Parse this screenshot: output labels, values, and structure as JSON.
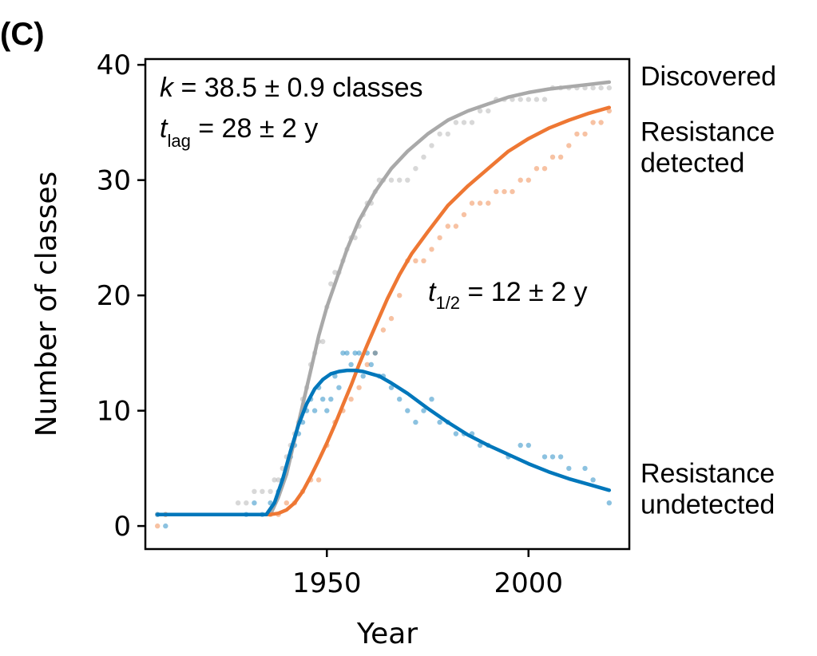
{
  "panel_label": "(C)",
  "chart_data": {
    "type": "line",
    "title": "",
    "xlabel": "Year",
    "ylabel": "Number of classes",
    "xlim": [
      1905,
      2025
    ],
    "ylim": [
      -2,
      40.5
    ],
    "xticks": [
      1950,
      2000
    ],
    "yticks": [
      0,
      10,
      20,
      30,
      40
    ],
    "grid": false,
    "annotations": {
      "k_symbol": "k",
      "k_text": " = 38.5 ± 0.9 classes",
      "tlag_symbol": "t",
      "tlag_sub": "lag",
      "tlag_text": " = 28 ± 2 y",
      "thalf_symbol": "t",
      "thalf_sub": "1/2",
      "thalf_text": " = 12 ± 2 y"
    },
    "series": [
      {
        "name": "Discovered",
        "label_lines": [
          "Discovered"
        ],
        "color": "#a9a9a9",
        "fit": {
          "x": [
            1908,
            1936,
            1938,
            1940,
            1942,
            1944,
            1946,
            1948,
            1950,
            1952,
            1955,
            1958,
            1962,
            1966,
            1970,
            1975,
            1980,
            1985,
            1990,
            1995,
            2000,
            2005,
            2010,
            2015,
            2020
          ],
          "y": [
            1,
            1,
            2.5,
            4.5,
            7.5,
            10.5,
            13.5,
            16.5,
            19,
            21,
            24,
            26.5,
            29,
            31,
            32.5,
            34,
            35.2,
            36,
            36.6,
            37.2,
            37.6,
            37.9,
            38.1,
            38.3,
            38.5
          ]
        },
        "points": {
          "x": [
            1908,
            1910,
            1928,
            1930,
            1932,
            1934,
            1936,
            1937,
            1938,
            1939,
            1940,
            1941,
            1942,
            1943,
            1944,
            1945,
            1946,
            1947,
            1948,
            1949,
            1950,
            1951,
            1952,
            1953,
            1954,
            1955,
            1956,
            1957,
            1958,
            1959,
            1960,
            1961,
            1962,
            1963,
            1964,
            1966,
            1968,
            1970,
            1972,
            1974,
            1976,
            1978,
            1980,
            1982,
            1984,
            1986,
            1988,
            1990,
            1992,
            1994,
            1996,
            1998,
            2000,
            2002,
            2004,
            2006,
            2008,
            2010,
            2012,
            2014,
            2016,
            2018,
            2020
          ],
          "y": [
            1,
            1,
            2,
            2,
            3,
            3,
            3,
            4,
            4,
            5,
            6,
            7,
            8,
            9,
            11,
            12,
            14,
            15,
            16,
            16,
            19,
            21,
            22,
            22,
            23,
            24,
            25,
            25,
            26,
            27,
            28,
            28,
            29,
            30,
            30,
            30,
            30,
            30,
            31,
            32,
            33,
            34,
            34,
            35,
            35,
            35,
            36,
            36,
            37,
            37,
            37,
            37,
            37,
            37,
            37,
            38,
            38,
            38,
            38,
            38,
            38,
            38,
            38
          ]
        }
      },
      {
        "name": "Resistance detected",
        "label_lines": [
          "Resistance",
          "detected"
        ],
        "color": "#ee7733",
        "fit": {
          "x": [
            1908,
            1936,
            1938,
            1940,
            1942,
            1944,
            1946,
            1948,
            1950,
            1952,
            1954,
            1956,
            1958,
            1960,
            1962,
            1965,
            1968,
            1971,
            1975,
            1980,
            1985,
            1990,
            1995,
            2000,
            2005,
            2010,
            2015,
            2020
          ],
          "y": [
            1,
            1,
            1.1,
            1.4,
            2,
            3,
            4.3,
            5.7,
            7.2,
            8.8,
            10.5,
            12.2,
            14,
            15.7,
            17.3,
            19.7,
            21.8,
            23.6,
            25.5,
            27.8,
            29.5,
            31,
            32.5,
            33.6,
            34.5,
            35.2,
            35.8,
            36.3
          ]
        },
        "points": {
          "x": [
            1908,
            1910,
            1936,
            1938,
            1940,
            1942,
            1944,
            1946,
            1948,
            1950,
            1952,
            1954,
            1956,
            1958,
            1960,
            1962,
            1964,
            1966,
            1968,
            1970,
            1972,
            1974,
            1976,
            1978,
            1980,
            1982,
            1984,
            1986,
            1988,
            1990,
            1992,
            1994,
            1996,
            1998,
            2000,
            2002,
            2004,
            2006,
            2008,
            2010,
            2012,
            2014,
            2016,
            2018,
            2020
          ],
          "y": [
            0,
            1,
            1,
            1,
            2,
            2,
            3,
            4,
            4,
            7,
            9,
            10,
            11,
            12,
            14,
            15,
            17,
            18,
            20,
            23,
            23,
            23,
            24,
            25,
            26,
            26,
            27,
            28,
            28,
            28,
            29,
            29,
            29,
            30,
            30,
            31,
            31,
            32,
            32,
            33,
            34,
            34,
            35,
            35,
            36
          ]
        }
      },
      {
        "name": "Resistance undetected",
        "label_lines": [
          "Resistance",
          "undetected"
        ],
        "color": "#0077bb",
        "fit": {
          "x": [
            1908,
            1935,
            1937,
            1939,
            1941,
            1943,
            1945,
            1947,
            1949,
            1951,
            1953,
            1955,
            1957,
            1959,
            1961,
            1963,
            1966,
            1970,
            1975,
            1980,
            1985,
            1990,
            1995,
            2000,
            2005,
            2010,
            2015,
            2020
          ],
          "y": [
            1,
            1,
            2,
            4,
            6.5,
            8.8,
            10.6,
            11.9,
            12.7,
            13.2,
            13.4,
            13.5,
            13.5,
            13.4,
            13.2,
            13,
            12.4,
            11.5,
            10.2,
            9,
            7.9,
            7,
            6.2,
            5.4,
            4.7,
            4.1,
            3.6,
            3.1
          ]
        },
        "points": {
          "x": [
            1908,
            1910,
            1930,
            1932,
            1934,
            1936,
            1938,
            1939,
            1940,
            1941,
            1942,
            1943,
            1944,
            1945,
            1946,
            1947,
            1948,
            1949,
            1950,
            1951,
            1952,
            1953,
            1954,
            1955,
            1956,
            1957,
            1958,
            1959,
            1960,
            1961,
            1962,
            1963,
            1964,
            1966,
            1968,
            1970,
            1972,
            1974,
            1976,
            1978,
            1980,
            1982,
            1984,
            1986,
            1988,
            1990,
            1995,
            1998,
            2000,
            2004,
            2006,
            2008,
            2010,
            2014,
            2016,
            2020
          ],
          "y": [
            1,
            0,
            1,
            2,
            1,
            2,
            3,
            4,
            5,
            6,
            7,
            8,
            9,
            10,
            11,
            10,
            12,
            11,
            10,
            11,
            13,
            12,
            15,
            15,
            14,
            15,
            15,
            13,
            15,
            14,
            15,
            13,
            13,
            12,
            11,
            10,
            9,
            10,
            11,
            9,
            9,
            8,
            8,
            8,
            7,
            7,
            6,
            7,
            7,
            6,
            6,
            6,
            5,
            5,
            4,
            2
          ]
        }
      }
    ]
  }
}
